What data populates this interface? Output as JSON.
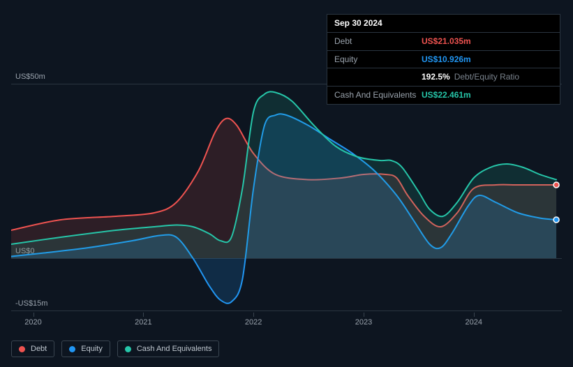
{
  "tooltip": {
    "date": "Sep 30 2024",
    "rows": [
      {
        "label": "Debt",
        "value": "US$21.035m",
        "color": "#ef5350"
      },
      {
        "label": "Equity",
        "value": "US$10.926m",
        "color": "#2196f3"
      },
      {
        "label": "",
        "value": "192.5%",
        "suffix": "Debt/Equity Ratio",
        "color": "#ffffff"
      },
      {
        "label": "Cash And Equivalents",
        "value": "US$22.461m",
        "color": "#26c6a9"
      }
    ]
  },
  "chart": {
    "type": "area",
    "background_color": "#0d1520",
    "grid_color": "#2a3540",
    "ylim": [
      -15,
      50
    ],
    "y_ticks": [
      {
        "v": 50,
        "label": "US$50m"
      },
      {
        "v": 0,
        "label": "US$0"
      },
      {
        "v": -15,
        "label": "-US$15m"
      }
    ],
    "x_range_years": [
      2019.8,
      2024.8
    ],
    "x_ticks": [
      {
        "v": 2020,
        "label": "2020"
      },
      {
        "v": 2021,
        "label": "2021"
      },
      {
        "v": 2022,
        "label": "2022"
      },
      {
        "v": 2023,
        "label": "2023"
      },
      {
        "v": 2024,
        "label": "2024"
      }
    ],
    "series": [
      {
        "name": "Debt",
        "color": "#ef5350",
        "fill_opacity": 0.14,
        "stroke_width": 2,
        "points": [
          [
            2019.8,
            8
          ],
          [
            2020.25,
            11
          ],
          [
            2020.75,
            12
          ],
          [
            2021.1,
            13
          ],
          [
            2021.3,
            16
          ],
          [
            2021.5,
            25
          ],
          [
            2021.65,
            36
          ],
          [
            2021.75,
            40
          ],
          [
            2021.85,
            38
          ],
          [
            2022.0,
            30
          ],
          [
            2022.2,
            24
          ],
          [
            2022.5,
            22.5
          ],
          [
            2022.8,
            23
          ],
          [
            2023.0,
            24
          ],
          [
            2023.2,
            24
          ],
          [
            2023.3,
            23
          ],
          [
            2023.4,
            18
          ],
          [
            2023.55,
            12
          ],
          [
            2023.7,
            9
          ],
          [
            2023.85,
            13
          ],
          [
            2024.0,
            20
          ],
          [
            2024.2,
            21
          ],
          [
            2024.4,
            21
          ],
          [
            2024.6,
            21
          ],
          [
            2024.75,
            21
          ]
        ]
      },
      {
        "name": "Equity",
        "color": "#2196f3",
        "fill_opacity": 0.18,
        "stroke_width": 2,
        "points": [
          [
            2019.8,
            0.5
          ],
          [
            2020.1,
            1.5
          ],
          [
            2020.5,
            3
          ],
          [
            2020.9,
            5
          ],
          [
            2021.15,
            6.5
          ],
          [
            2021.3,
            6
          ],
          [
            2021.45,
            0
          ],
          [
            2021.6,
            -8
          ],
          [
            2021.7,
            -12
          ],
          [
            2021.8,
            -12.5
          ],
          [
            2021.9,
            -6
          ],
          [
            2022.0,
            20
          ],
          [
            2022.1,
            38
          ],
          [
            2022.2,
            41
          ],
          [
            2022.3,
            41
          ],
          [
            2022.5,
            38
          ],
          [
            2022.7,
            34
          ],
          [
            2022.9,
            30
          ],
          [
            2023.1,
            25
          ],
          [
            2023.3,
            18
          ],
          [
            2023.45,
            11
          ],
          [
            2023.6,
            4
          ],
          [
            2023.7,
            3
          ],
          [
            2023.8,
            7
          ],
          [
            2023.95,
            15
          ],
          [
            2024.05,
            18
          ],
          [
            2024.2,
            16
          ],
          [
            2024.4,
            13
          ],
          [
            2024.6,
            11.5
          ],
          [
            2024.75,
            11
          ]
        ]
      },
      {
        "name": "Cash And Equivalents",
        "color": "#26c6a9",
        "fill_opacity": 0.14,
        "stroke_width": 2,
        "points": [
          [
            2019.8,
            4
          ],
          [
            2020.25,
            6
          ],
          [
            2020.75,
            8
          ],
          [
            2021.1,
            9
          ],
          [
            2021.3,
            9.5
          ],
          [
            2021.45,
            9
          ],
          [
            2021.6,
            7
          ],
          [
            2021.7,
            5
          ],
          [
            2021.8,
            6
          ],
          [
            2021.9,
            20
          ],
          [
            2022.0,
            42
          ],
          [
            2022.1,
            47
          ],
          [
            2022.2,
            47.5
          ],
          [
            2022.35,
            45
          ],
          [
            2022.55,
            38
          ],
          [
            2022.75,
            32
          ],
          [
            2022.95,
            29
          ],
          [
            2023.15,
            28
          ],
          [
            2023.25,
            28
          ],
          [
            2023.35,
            26
          ],
          [
            2023.5,
            19
          ],
          [
            2023.6,
            14
          ],
          [
            2023.72,
            12
          ],
          [
            2023.85,
            16
          ],
          [
            2024.0,
            23
          ],
          [
            2024.15,
            26
          ],
          [
            2024.3,
            27
          ],
          [
            2024.45,
            26
          ],
          [
            2024.6,
            24
          ],
          [
            2024.75,
            22.5
          ]
        ]
      }
    ]
  },
  "legend": [
    {
      "label": "Debt",
      "color": "#ef5350"
    },
    {
      "label": "Equity",
      "color": "#2196f3"
    },
    {
      "label": "Cash And Equivalents",
      "color": "#26c6a9"
    }
  ]
}
